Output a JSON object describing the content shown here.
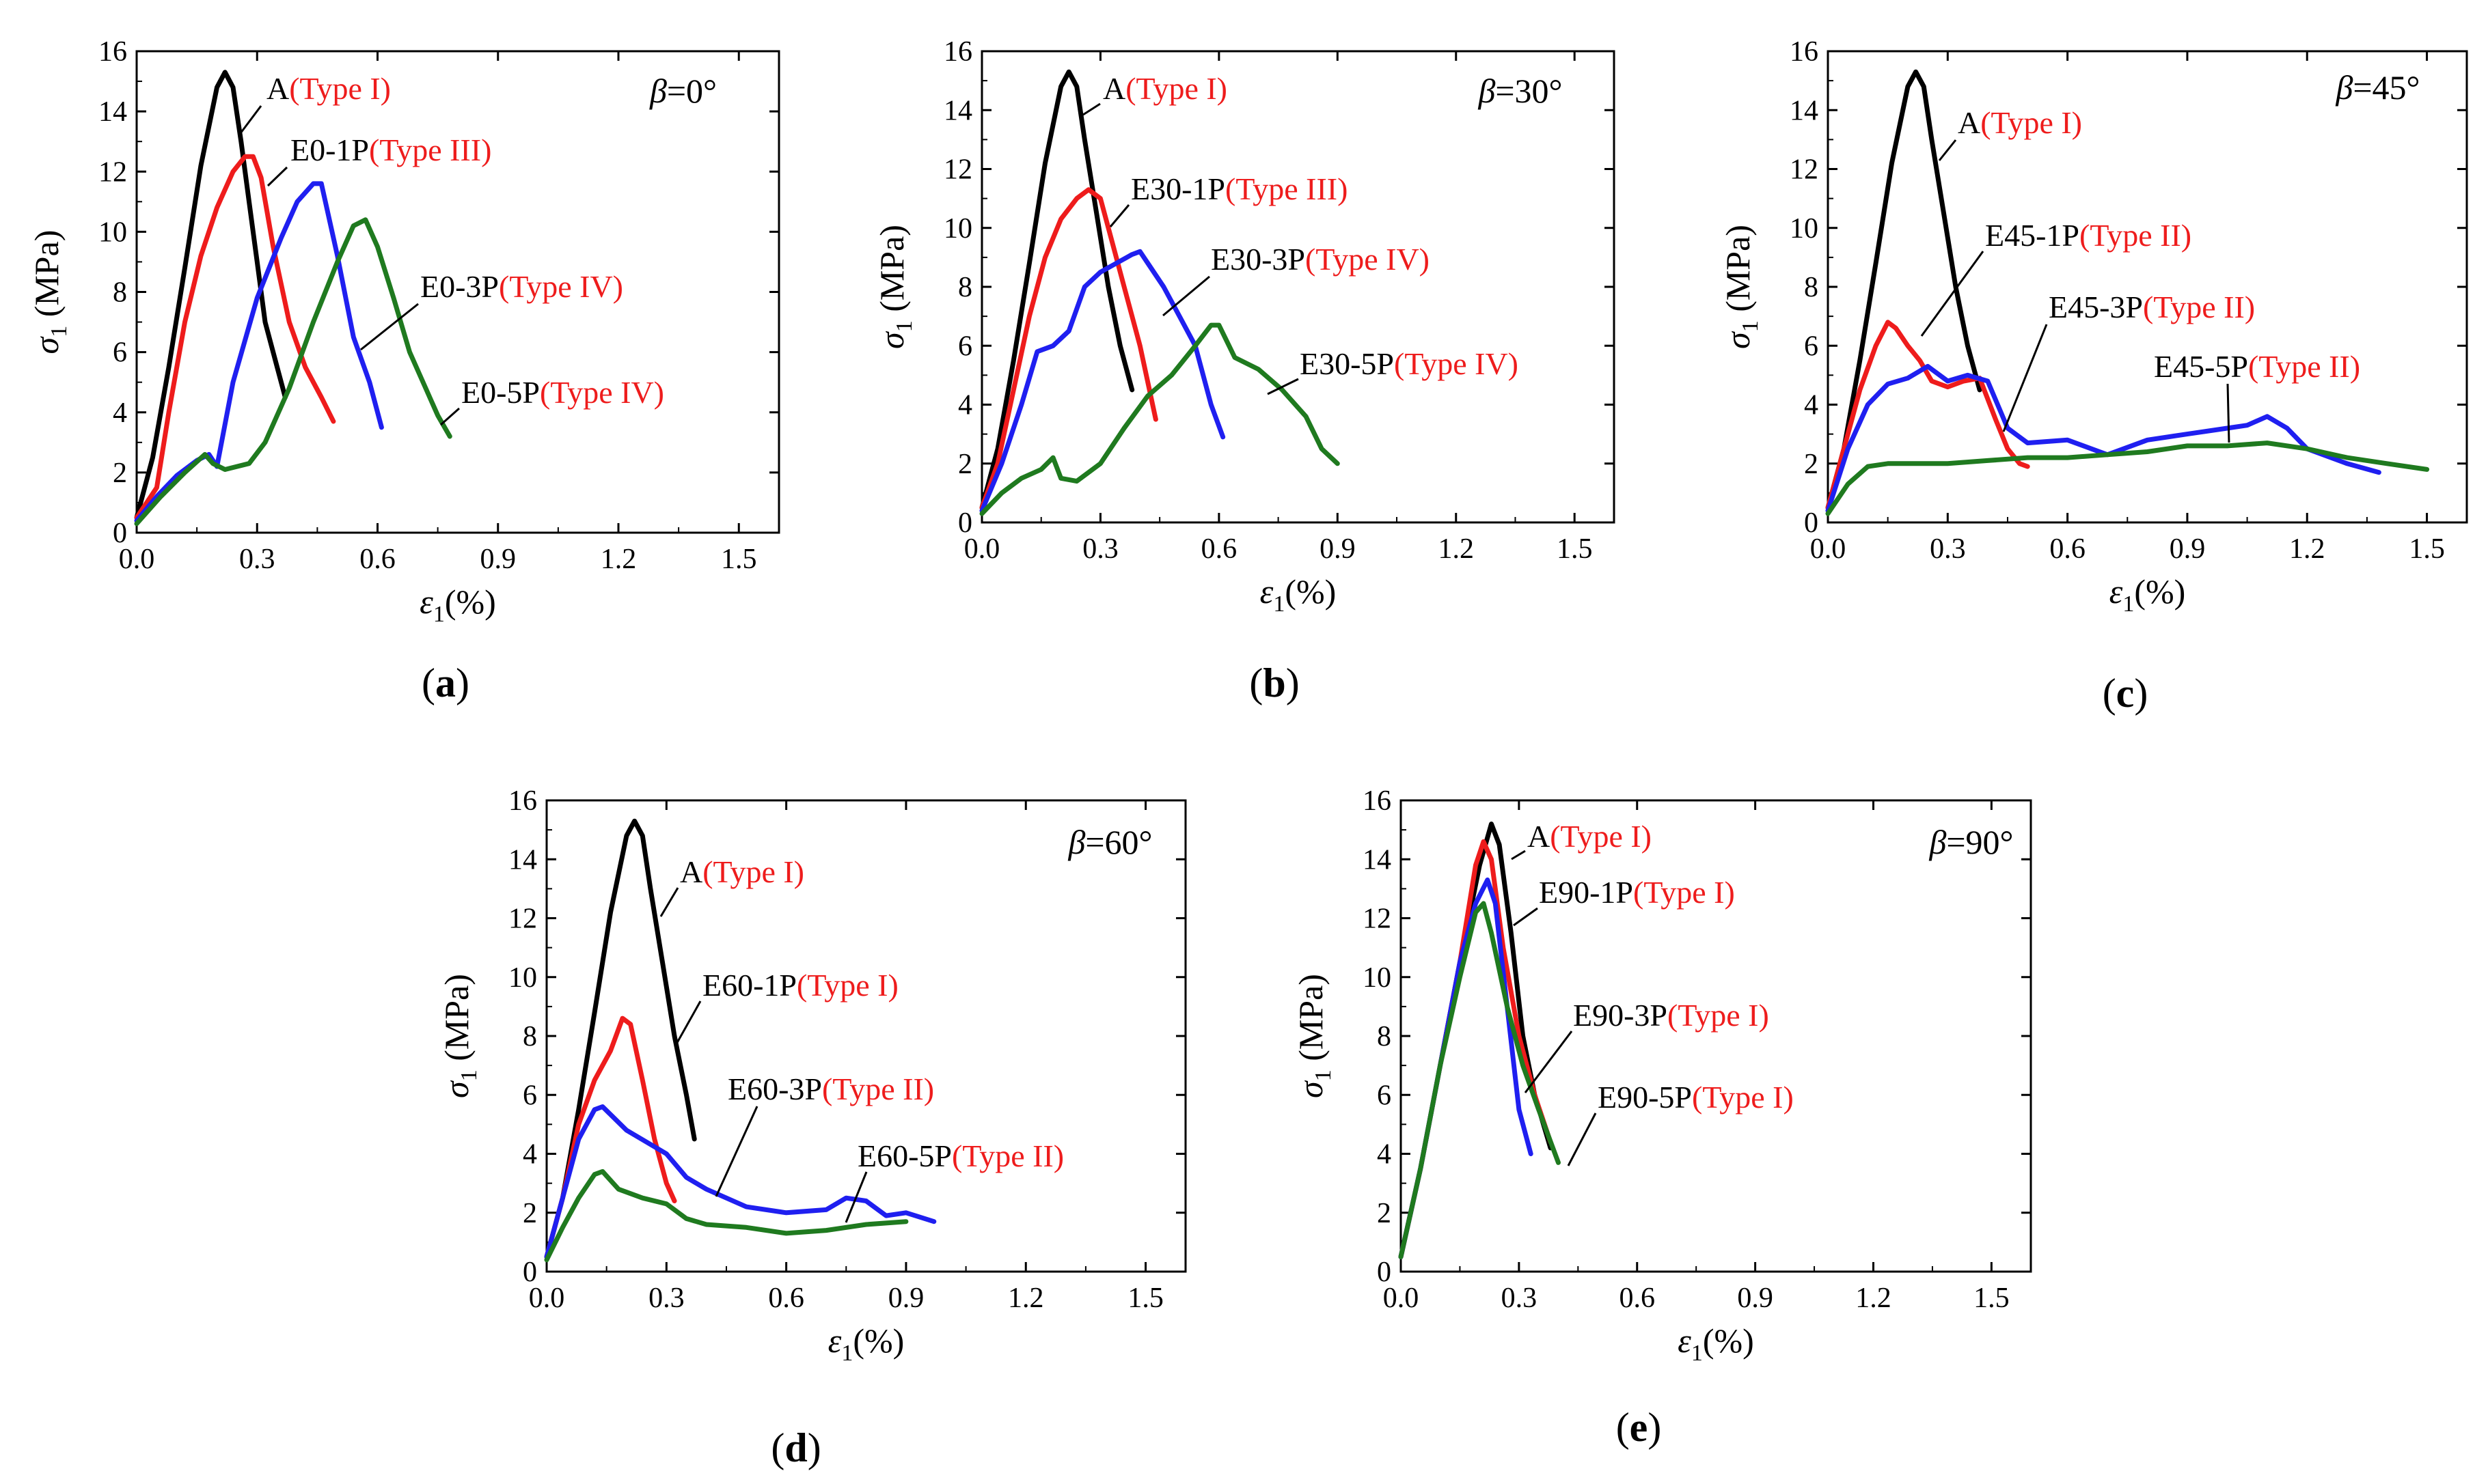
{
  "colors": {
    "black": "#000000",
    "red": "#ee1c1c",
    "blue": "#1f1ff0",
    "green": "#1f7a1f"
  },
  "axis_common": {
    "x_ticks": [
      "0.0",
      "0.3",
      "0.6",
      "0.9",
      "1.2",
      "1.5"
    ],
    "y_ticks": [
      "0",
      "2",
      "4",
      "6",
      "8",
      "10",
      "12",
      "14",
      "16"
    ],
    "xlim": [
      0,
      1.6
    ],
    "ylim": [
      0,
      16
    ],
    "xlabel_main": "ε",
    "xlabel_sub": "1",
    "xlabel_tail": "(%)",
    "ylabel_main": "σ",
    "ylabel_sub": "1",
    "ylabel_tail": " (MPa)"
  },
  "chart_data": [
    {
      "type": "line",
      "panel_label": "(a)",
      "angle_symbol": "β",
      "angle_text": "=0°",
      "xlim": [
        0,
        1.6
      ],
      "ylim": [
        0,
        16
      ],
      "series": [
        {
          "name_black": "A",
          "name_red": "(Type I)",
          "color": "black",
          "x": [
            0,
            0.04,
            0.08,
            0.12,
            0.16,
            0.2,
            0.22,
            0.24,
            0.26,
            0.28,
            0.3,
            0.32,
            0.35,
            0.37
          ],
          "y": [
            0.5,
            2.5,
            5.5,
            8.8,
            12.2,
            14.8,
            15.3,
            14.8,
            13,
            11,
            9,
            7,
            5.5,
            4.5
          ]
        },
        {
          "name_black": "E0-1P",
          "name_red": "(Type III)",
          "color": "red",
          "x": [
            0,
            0.05,
            0.08,
            0.12,
            0.16,
            0.2,
            0.24,
            0.27,
            0.29,
            0.31,
            0.34,
            0.38,
            0.42,
            0.46,
            0.49
          ],
          "y": [
            0.5,
            1.5,
            4,
            7,
            9.2,
            10.8,
            12,
            12.5,
            12.5,
            11.8,
            9.5,
            7,
            5.5,
            4.5,
            3.7
          ]
        },
        {
          "name_black": "E0-3P",
          "name_red": "(Type IV)",
          "color": "blue",
          "x": [
            0,
            0.05,
            0.1,
            0.15,
            0.18,
            0.2,
            0.24,
            0.3,
            0.36,
            0.4,
            0.44,
            0.46,
            0.5,
            0.54,
            0.58,
            0.61
          ],
          "y": [
            0.4,
            1.2,
            1.9,
            2.4,
            2.6,
            2.2,
            5,
            7.8,
            9.8,
            11,
            11.6,
            11.6,
            9.2,
            6.5,
            5,
            3.5
          ]
        },
        {
          "name_black": "E0-5P",
          "name_red": "(Type IV)",
          "color": "green",
          "x": [
            0,
            0.06,
            0.12,
            0.17,
            0.19,
            0.22,
            0.28,
            0.32,
            0.38,
            0.44,
            0.5,
            0.54,
            0.57,
            0.6,
            0.64,
            0.68,
            0.72,
            0.75,
            0.78
          ],
          "y": [
            0.3,
            1.2,
            2,
            2.6,
            2.3,
            2.1,
            2.3,
            3,
            4.8,
            7,
            9,
            10.2,
            10.4,
            9.5,
            7.8,
            6,
            4.8,
            3.9,
            3.2
          ]
        }
      ]
    },
    {
      "type": "line",
      "panel_label": "(b)",
      "angle_symbol": "β",
      "angle_text": "=30°",
      "xlim": [
        0,
        1.6
      ],
      "ylim": [
        0,
        16
      ],
      "series": [
        {
          "name_black": "A",
          "name_red": "(Type I)",
          "color": "black",
          "x": [
            0,
            0.04,
            0.08,
            0.12,
            0.16,
            0.2,
            0.22,
            0.24,
            0.26,
            0.29,
            0.32,
            0.35,
            0.38
          ],
          "y": [
            0.5,
            2.5,
            5.5,
            8.8,
            12.2,
            14.8,
            15.3,
            14.8,
            13,
            10.5,
            8,
            6,
            4.5
          ]
        },
        {
          "name_black": "E30-1P",
          "name_red": "(Type III)",
          "color": "red",
          "x": [
            0,
            0.04,
            0.08,
            0.12,
            0.16,
            0.2,
            0.24,
            0.27,
            0.3,
            0.33,
            0.36,
            0.4,
            0.44
          ],
          "y": [
            0.5,
            2,
            4.5,
            7,
            9,
            10.3,
            11,
            11.3,
            11,
            9.5,
            8,
            6,
            3.5
          ]
        },
        {
          "name_black": "E30-3P",
          "name_red": "(Type IV)",
          "color": "blue",
          "x": [
            0,
            0.05,
            0.1,
            0.14,
            0.18,
            0.22,
            0.26,
            0.3,
            0.34,
            0.38,
            0.4,
            0.42,
            0.46,
            0.5,
            0.54,
            0.58,
            0.61
          ],
          "y": [
            0.4,
            2,
            4,
            5.8,
            6,
            6.5,
            8,
            8.5,
            8.8,
            9.1,
            9.2,
            8.8,
            8,
            7,
            6,
            4,
            2.9
          ]
        },
        {
          "name_black": "E30-5P",
          "name_red": "(Type IV)",
          "color": "green",
          "x": [
            0,
            0.05,
            0.1,
            0.15,
            0.18,
            0.2,
            0.24,
            0.3,
            0.36,
            0.42,
            0.48,
            0.54,
            0.58,
            0.6,
            0.64,
            0.7,
            0.76,
            0.82,
            0.86,
            0.9
          ],
          "y": [
            0.3,
            1,
            1.5,
            1.8,
            2.2,
            1.5,
            1.4,
            2,
            3.2,
            4.3,
            5,
            6,
            6.7,
            6.7,
            5.6,
            5.2,
            4.5,
            3.6,
            2.5,
            2
          ]
        }
      ]
    },
    {
      "type": "line",
      "panel_label": "(c)",
      "angle_symbol": "β",
      "angle_text": "=45°",
      "xlim": [
        0,
        1.6
      ],
      "ylim": [
        0,
        16
      ],
      "series": [
        {
          "name_black": "A",
          "name_red": "(Type I)",
          "color": "black",
          "x": [
            0,
            0.04,
            0.08,
            0.12,
            0.16,
            0.2,
            0.22,
            0.24,
            0.26,
            0.29,
            0.32,
            0.35,
            0.38
          ],
          "y": [
            0.5,
            2.5,
            5.5,
            8.8,
            12.2,
            14.8,
            15.3,
            14.8,
            13,
            10.5,
            8,
            6,
            4.5
          ]
        },
        {
          "name_black": "E45-1P",
          "name_red": "(Type II)",
          "color": "red",
          "x": [
            0,
            0.04,
            0.08,
            0.12,
            0.15,
            0.17,
            0.2,
            0.23,
            0.26,
            0.3,
            0.34,
            0.38,
            0.42,
            0.45,
            0.48,
            0.5
          ],
          "y": [
            0.5,
            2.5,
            4.5,
            6,
            6.8,
            6.6,
            6,
            5.5,
            4.8,
            4.6,
            4.8,
            4.9,
            3.5,
            2.5,
            2,
            1.9
          ]
        },
        {
          "name_black": "E45-3P",
          "name_red": "(Type II)",
          "color": "blue",
          "x": [
            0,
            0.05,
            0.1,
            0.15,
            0.2,
            0.25,
            0.3,
            0.35,
            0.4,
            0.45,
            0.5,
            0.6,
            0.7,
            0.8,
            0.9,
            1.0,
            1.05,
            1.1,
            1.15,
            1.2,
            1.3,
            1.38
          ],
          "y": [
            0.4,
            2.5,
            4,
            4.7,
            4.9,
            5.3,
            4.8,
            5,
            4.8,
            3.2,
            2.7,
            2.8,
            2.3,
            2.8,
            3,
            3.2,
            3.3,
            3.6,
            3.2,
            2.5,
            2,
            1.7
          ]
        },
        {
          "name_black": "E45-5P",
          "name_red": "(Type II)",
          "color": "green",
          "x": [
            0,
            0.05,
            0.1,
            0.15,
            0.2,
            0.3,
            0.4,
            0.5,
            0.6,
            0.7,
            0.8,
            0.9,
            1.0,
            1.1,
            1.2,
            1.3,
            1.4,
            1.5
          ],
          "y": [
            0.3,
            1.3,
            1.9,
            2,
            2,
            2,
            2.1,
            2.2,
            2.2,
            2.3,
            2.4,
            2.6,
            2.6,
            2.7,
            2.5,
            2.2,
            2,
            1.8
          ]
        }
      ]
    },
    {
      "type": "line",
      "panel_label": "(d)",
      "angle_symbol": "β",
      "angle_text": "=60°",
      "xlim": [
        0,
        1.6
      ],
      "ylim": [
        0,
        16
      ],
      "series": [
        {
          "name_black": "A",
          "name_red": "(Type I)",
          "color": "black",
          "x": [
            0,
            0.04,
            0.08,
            0.12,
            0.16,
            0.2,
            0.22,
            0.24,
            0.26,
            0.29,
            0.32,
            0.35,
            0.37
          ],
          "y": [
            0.5,
            2.5,
            5.5,
            8.8,
            12.2,
            14.8,
            15.3,
            14.8,
            13,
            10.5,
            8,
            6,
            4.5
          ]
        },
        {
          "name_black": "E60-1P",
          "name_red": "(Type I)",
          "color": "red",
          "x": [
            0,
            0.04,
            0.08,
            0.12,
            0.16,
            0.19,
            0.21,
            0.24,
            0.27,
            0.3,
            0.32
          ],
          "y": [
            0.5,
            2.5,
            5,
            6.5,
            7.5,
            8.6,
            8.4,
            6.5,
            4.5,
            3,
            2.4
          ]
        },
        {
          "name_black": "E60-3P",
          "name_red": "(Type II)",
          "color": "blue",
          "x": [
            0,
            0.04,
            0.08,
            0.12,
            0.14,
            0.2,
            0.3,
            0.35,
            0.4,
            0.45,
            0.5,
            0.6,
            0.7,
            0.75,
            0.8,
            0.85,
            0.9,
            0.97
          ],
          "y": [
            0.5,
            2.5,
            4.5,
            5.5,
            5.6,
            4.8,
            4,
            3.2,
            2.8,
            2.5,
            2.2,
            2,
            2.1,
            2.5,
            2.4,
            1.9,
            2,
            1.7
          ]
        },
        {
          "name_black": "E60-5P",
          "name_red": "(Type II)",
          "color": "green",
          "x": [
            0,
            0.04,
            0.08,
            0.12,
            0.14,
            0.18,
            0.24,
            0.3,
            0.35,
            0.4,
            0.5,
            0.6,
            0.7,
            0.8,
            0.9
          ],
          "y": [
            0.4,
            1.5,
            2.5,
            3.3,
            3.4,
            2.8,
            2.5,
            2.3,
            1.8,
            1.6,
            1.5,
            1.3,
            1.4,
            1.6,
            1.7
          ]
        }
      ]
    },
    {
      "type": "line",
      "panel_label": "(e)",
      "angle_symbol": "β",
      "angle_text": "=90°",
      "xlim": [
        0,
        1.6
      ],
      "ylim": [
        0,
        16
      ],
      "series": [
        {
          "name_black": "A",
          "name_red": "(Type I)",
          "color": "black",
          "x": [
            0,
            0.05,
            0.1,
            0.15,
            0.2,
            0.23,
            0.25,
            0.28,
            0.31,
            0.34,
            0.38
          ],
          "y": [
            0.5,
            3.5,
            7,
            10.5,
            13.8,
            15.2,
            14.5,
            11.5,
            8,
            6,
            4.2
          ]
        },
        {
          "name_black": "E90-1P",
          "name_red": "(Type I)",
          "color": "red",
          "x": [
            0,
            0.05,
            0.1,
            0.15,
            0.19,
            0.21,
            0.23,
            0.26,
            0.3,
            0.34,
            0.38
          ],
          "y": [
            0.5,
            3.5,
            7,
            10.5,
            13.8,
            14.6,
            14,
            11,
            8,
            6,
            4.4
          ]
        },
        {
          "name_black": "E90-3P",
          "name_red": "(Type I)",
          "color": "blue",
          "x": [
            0,
            0.05,
            0.1,
            0.15,
            0.19,
            0.22,
            0.24,
            0.27,
            0.3,
            0.33
          ],
          "y": [
            0.5,
            3.5,
            7,
            10.5,
            12.5,
            13.3,
            12.5,
            9,
            5.5,
            4
          ]
        },
        {
          "name_black": "E90-5P",
          "name_red": "(Type I)",
          "color": "green",
          "x": [
            0,
            0.05,
            0.1,
            0.15,
            0.19,
            0.21,
            0.23,
            0.27,
            0.31,
            0.35,
            0.4
          ],
          "y": [
            0.5,
            3.5,
            7,
            10,
            12.2,
            12.5,
            11.5,
            9,
            7,
            5.5,
            3.7
          ]
        }
      ]
    }
  ]
}
